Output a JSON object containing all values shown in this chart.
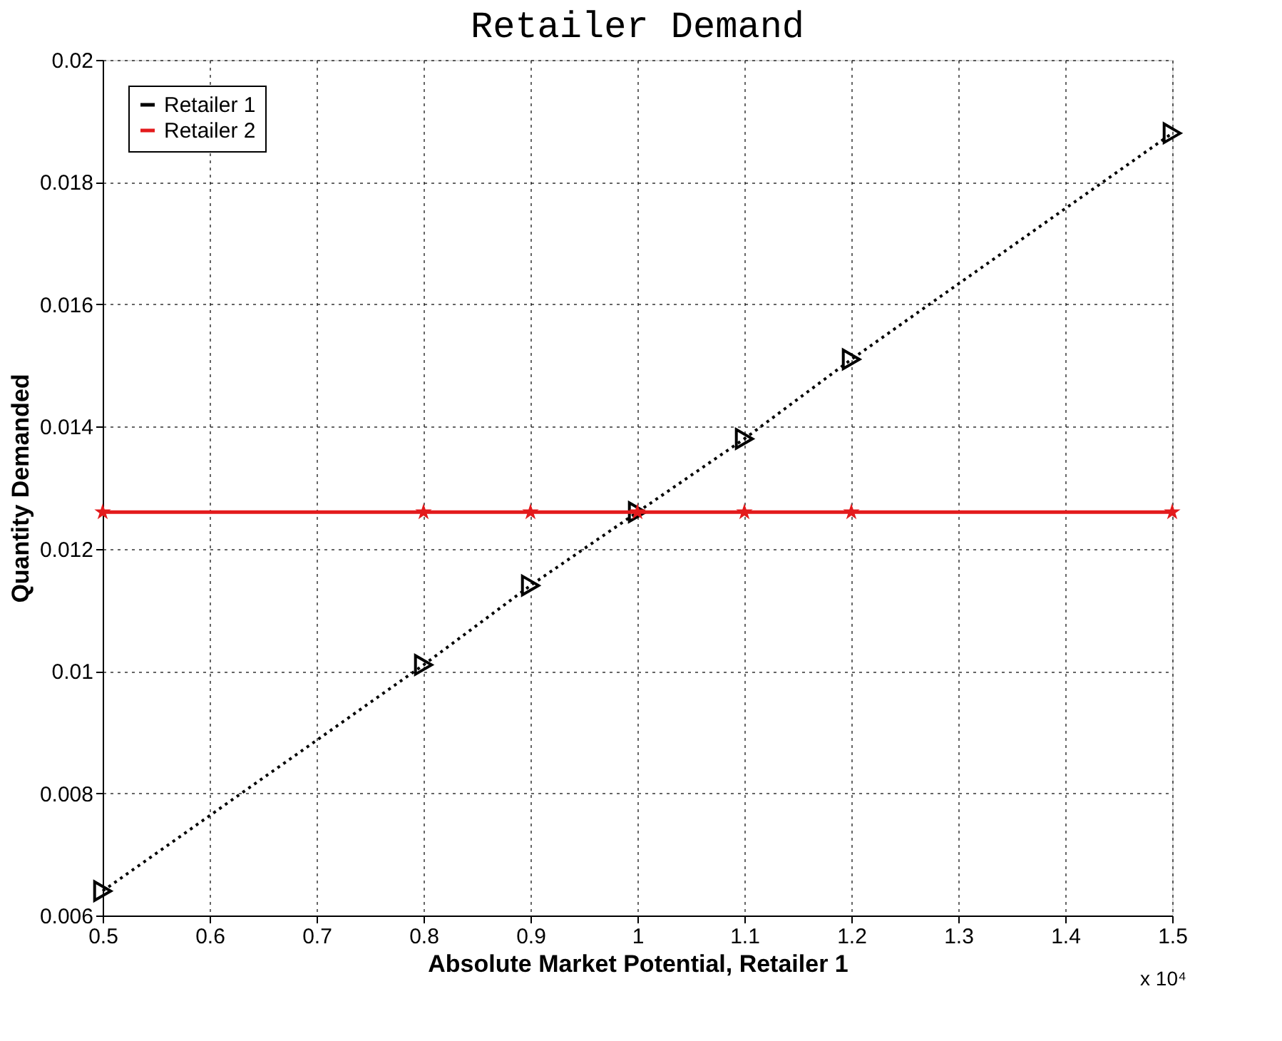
{
  "chart_data": {
    "type": "line",
    "title": "Retailer Demand",
    "xlabel": "Absolute Market Potential, Retailer 1",
    "ylabel": "Quantity Demanded",
    "x": [
      0.5,
      0.8,
      0.9,
      1.0,
      1.1,
      1.2,
      1.5
    ],
    "series": [
      {
        "name": "Retailer 1",
        "color": "#000000",
        "marker": "triangle",
        "line_style": "dotted",
        "values": [
          0.0064,
          0.0101,
          0.0114,
          0.0126,
          0.0138,
          0.0151,
          0.0188
        ]
      },
      {
        "name": "Retailer 2",
        "color": "#e31a1c",
        "marker": "star",
        "line_style": "solid",
        "values": [
          0.0126,
          0.0126,
          0.0126,
          0.0126,
          0.0126,
          0.0126,
          0.0126
        ]
      }
    ],
    "xlim": [
      0.5,
      1.5
    ],
    "xticks": [
      0.5,
      0.6,
      0.7,
      0.8,
      0.9,
      1,
      1.1,
      1.2,
      1.3,
      1.4,
      1.5
    ],
    "ylim": [
      0.006,
      0.02
    ],
    "yticks": [
      0.006,
      0.008,
      0.01,
      0.012,
      0.014,
      0.016,
      0.018,
      0.02
    ],
    "grid": true,
    "legend": "top left",
    "annotations": [
      "x 10⁴"
    ]
  }
}
